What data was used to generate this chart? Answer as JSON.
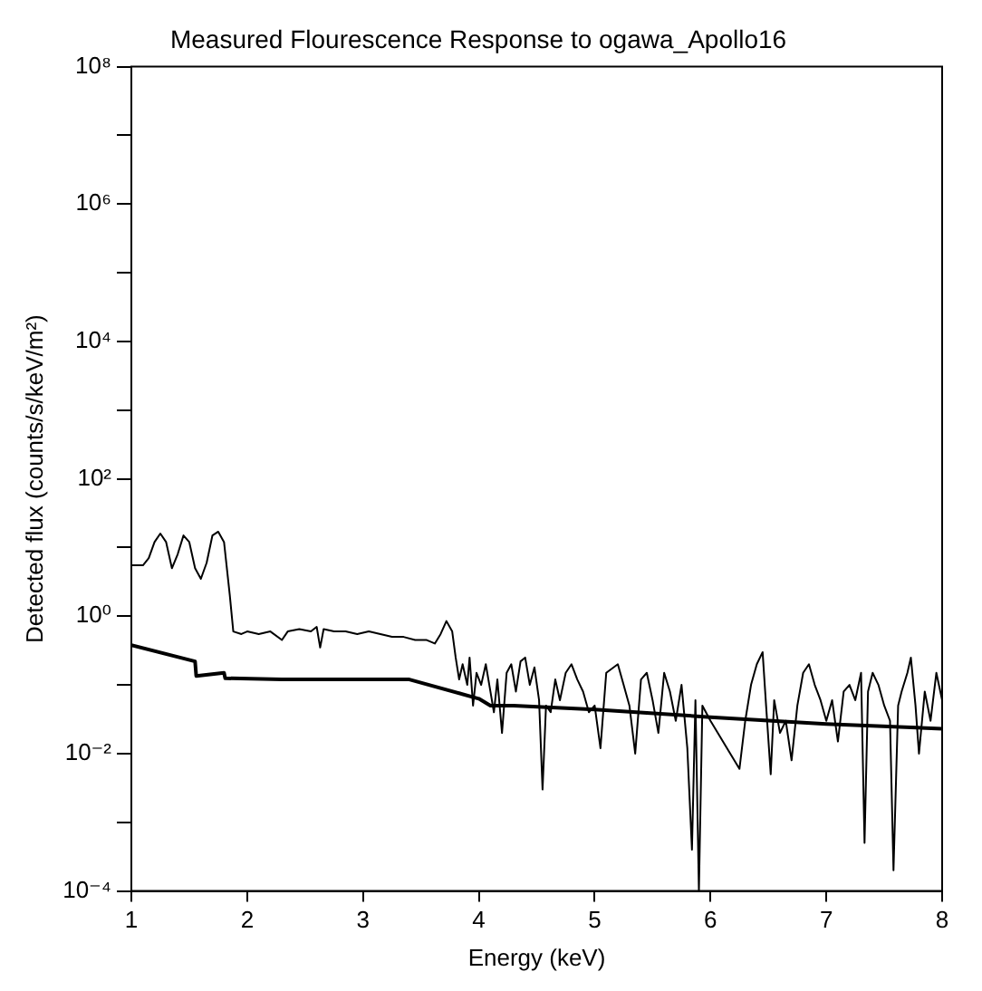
{
  "chart_data": {
    "type": "line",
    "title": "Measured Flourescence Response to ogawa_Apollo16",
    "xlabel": "Energy (keV)",
    "ylabel": "Detected flux (counts/s/keV/m²)",
    "log": "y",
    "marker": "none",
    "line_style": "solid",
    "xlim": [
      1,
      8
    ],
    "xticks": [
      1,
      2,
      3,
      4,
      5,
      6,
      7,
      8
    ],
    "ylim": [
      0.0001,
      100000000
    ],
    "yticks": [
      {
        "value": 0.0001,
        "label": "10⁻⁴"
      },
      {
        "value": 0.001,
        "label": null
      },
      {
        "value": 0.01,
        "label": "10⁻²"
      },
      {
        "value": 0.1,
        "label": null
      },
      {
        "value": 1,
        "label": "10⁰"
      },
      {
        "value": 10,
        "label": null
      },
      {
        "value": 100,
        "label": "10²"
      },
      {
        "value": 1000,
        "label": null
      },
      {
        "value": 10000,
        "label": "10⁴"
      },
      {
        "value": 100000,
        "label": null
      },
      {
        "value": 1000000,
        "label": "10⁶"
      },
      {
        "value": 10000000,
        "label": null
      },
      {
        "value": 100000000,
        "label": "10⁸"
      }
    ],
    "series": [
      {
        "color": "#000000",
        "x": [
          1.0,
          1.1,
          1.15,
          1.2,
          1.25,
          1.3,
          1.35,
          1.4,
          1.45,
          1.5,
          1.55,
          1.6,
          1.65,
          1.7,
          1.75,
          1.8,
          1.85,
          1.88,
          1.95,
          2.0,
          2.1,
          2.2,
          2.3,
          2.35,
          2.45,
          2.55,
          2.6,
          2.63,
          2.66,
          2.75,
          2.85,
          2.95,
          3.05,
          3.15,
          3.25,
          3.35,
          3.45,
          3.55,
          3.62,
          3.67,
          3.72,
          3.77,
          3.8,
          3.83,
          3.86,
          3.9,
          3.92,
          3.95,
          3.98,
          4.02,
          4.06,
          4.1,
          4.13,
          4.16,
          4.2,
          4.24,
          4.28,
          4.32,
          4.36,
          4.4,
          4.44,
          4.48,
          4.52,
          4.55,
          4.58,
          4.62,
          4.66,
          4.7,
          4.75,
          4.8,
          4.85,
          4.9,
          4.95,
          5.0,
          5.05,
          5.1,
          5.2,
          5.25,
          5.3,
          5.35,
          5.4,
          5.45,
          5.5,
          5.55,
          5.6,
          5.65,
          5.7,
          5.75,
          5.8,
          5.84,
          5.87,
          5.9,
          5.93,
          6.0,
          6.25,
          6.3,
          6.35,
          6.4,
          6.45,
          6.48,
          6.52,
          6.55,
          6.6,
          6.65,
          6.7,
          6.75,
          6.8,
          6.85,
          6.9,
          6.95,
          7.0,
          7.05,
          7.1,
          7.15,
          7.2,
          7.25,
          7.3,
          7.33,
          7.36,
          7.4,
          7.45,
          7.5,
          7.55,
          7.58,
          7.62,
          7.65,
          7.7,
          7.73,
          7.77,
          7.8,
          7.85,
          7.9,
          7.95,
          8.0
        ],
        "values": [
          5.5,
          5.5,
          7,
          12,
          16,
          12,
          5,
          8,
          15,
          12,
          5,
          3.5,
          6,
          15,
          17,
          12,
          2,
          0.6,
          0.55,
          0.6,
          0.55,
          0.6,
          0.45,
          0.6,
          0.65,
          0.6,
          0.7,
          0.35,
          0.65,
          0.6,
          0.6,
          0.55,
          0.6,
          0.55,
          0.5,
          0.5,
          0.45,
          0.45,
          0.4,
          0.55,
          0.85,
          0.6,
          0.25,
          0.12,
          0.2,
          0.1,
          0.25,
          0.05,
          0.15,
          0.1,
          0.2,
          0.08,
          0.04,
          0.12,
          0.02,
          0.15,
          0.2,
          0.08,
          0.22,
          0.25,
          0.1,
          0.18,
          0.06,
          0.003,
          0.05,
          0.04,
          0.12,
          0.06,
          0.15,
          0.2,
          0.12,
          0.08,
          0.04,
          0.05,
          0.012,
          0.15,
          0.2,
          0.1,
          0.05,
          0.01,
          0.12,
          0.15,
          0.06,
          0.02,
          0.15,
          0.08,
          0.03,
          0.1,
          0.012,
          0.0004,
          0.06,
          0.0001,
          0.05,
          0.03,
          0.006,
          0.03,
          0.1,
          0.2,
          0.3,
          0.05,
          0.005,
          0.06,
          0.02,
          0.03,
          0.008,
          0.05,
          0.15,
          0.2,
          0.1,
          0.06,
          0.03,
          0.06,
          0.015,
          0.08,
          0.1,
          0.06,
          0.15,
          0.0005,
          0.08,
          0.15,
          0.1,
          0.05,
          0.03,
          0.0002,
          0.05,
          0.08,
          0.15,
          0.25,
          0.05,
          0.01,
          0.08,
          0.03,
          0.15,
          0.06
        ]
      },
      {
        "color": "#000000",
        "x": [
          1,
          1.55,
          1.56,
          1.8,
          1.81,
          2.3,
          3.4,
          4.0,
          4.1,
          4.3,
          5,
          6,
          7,
          8
        ],
        "values": [
          0.38,
          0.22,
          0.135,
          0.15,
          0.125,
          0.12,
          0.12,
          0.063,
          0.05,
          0.05,
          0.044,
          0.034,
          0.027,
          0.023
        ]
      }
    ]
  }
}
